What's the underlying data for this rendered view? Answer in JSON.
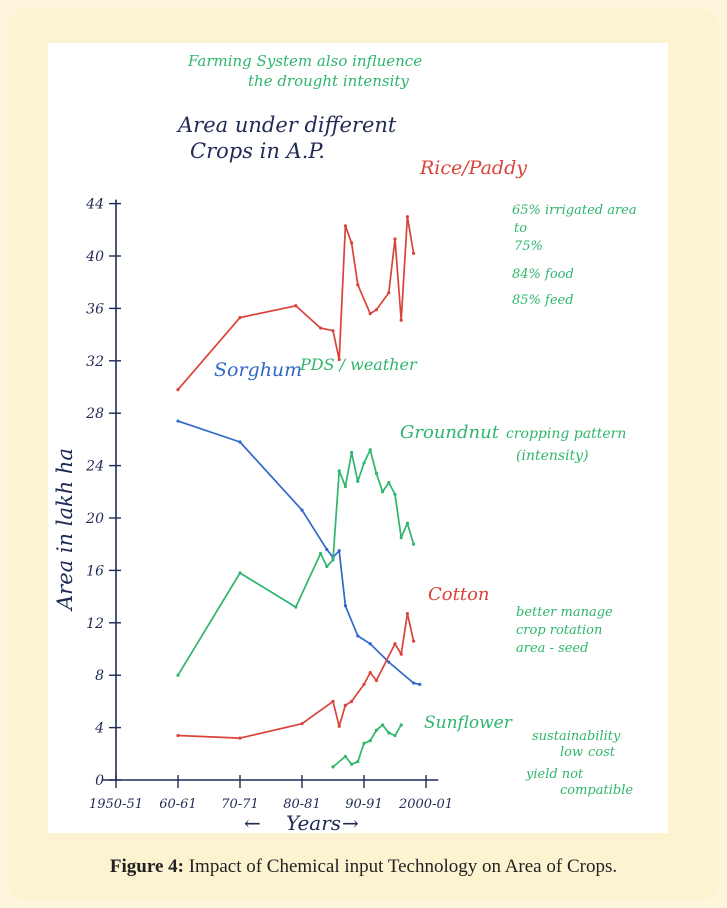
{
  "colors": {
    "rice": "#d9433a",
    "sorghum": "#2f68c9",
    "groundnut": "#2fb56d",
    "cotton": "#d9433a",
    "sunflower": "#2fb56d",
    "ink": "#1f2a55",
    "note": "#2fb56d"
  },
  "caption": {
    "label": "Figure 4:",
    "text": "Impact of Chemical input Technology on Area of Crops."
  },
  "notes": {
    "top_line1": "Farming System also influence",
    "top_line2": "the drought intensity",
    "pds": "PDS / weather",
    "irrigated_1": "65% irrigated area",
    "irrigated_2": "to",
    "irrigated_3": "75%",
    "food": "84% food",
    "feed": "85% feed",
    "cropping_1": "cropping pattern",
    "cropping_2": "(intensity)",
    "water_1": "better manage",
    "water_2": "crop rotation",
    "water_3": "area - seed",
    "sust_1": "sustainability",
    "sust_2": "low",
    "sust_3": "cost",
    "sust_4": "yield not",
    "sust_5": "compatible"
  },
  "chart_data": {
    "type": "line",
    "title": "Area under different Crops in A.P.",
    "xlabel": "Years",
    "ylabel": "Area in lakh ha",
    "x_tick_labels": [
      "1950-51",
      "60-61",
      "70-71",
      "80-81",
      "90-91",
      "2000-01"
    ],
    "x_tick_values": [
      1950,
      1960,
      1970,
      1980,
      1990,
      2000
    ],
    "y_ticks": [
      0,
      4,
      8,
      12,
      16,
      20,
      24,
      28,
      32,
      36,
      40,
      44
    ],
    "xlim": [
      1950,
      2002
    ],
    "ylim": [
      0,
      44
    ],
    "grid": false,
    "legend": "none",
    "series": [
      {
        "name": "Rice/Paddy",
        "color": "#d9433a",
        "points": [
          [
            1960,
            29.8
          ],
          [
            1970,
            35.3
          ],
          [
            1979,
            36.2
          ],
          [
            1983,
            34.5
          ],
          [
            1985,
            34.3
          ],
          [
            1986,
            32.1
          ],
          [
            1987,
            42.3
          ],
          [
            1988,
            41.0
          ],
          [
            1989,
            37.8
          ],
          [
            1991,
            35.6
          ],
          [
            1992,
            35.9
          ],
          [
            1994,
            37.2
          ],
          [
            1995,
            41.3
          ],
          [
            1996,
            35.1
          ],
          [
            1997,
            43.0
          ],
          [
            1998,
            40.2
          ]
        ]
      },
      {
        "name": "Sorghum",
        "color": "#2f68c9",
        "points": [
          [
            1960,
            27.4
          ],
          [
            1970,
            25.8
          ],
          [
            1980,
            20.6
          ],
          [
            1984,
            17.6
          ],
          [
            1985,
            17.0
          ],
          [
            1986,
            17.5
          ],
          [
            1987,
            13.3
          ],
          [
            1989,
            11.0
          ],
          [
            1991,
            10.4
          ],
          [
            1994,
            9.0
          ],
          [
            1998,
            7.4
          ],
          [
            1999,
            7.3
          ]
        ]
      },
      {
        "name": "Groundnut",
        "color": "#2fb56d",
        "points": [
          [
            1960,
            8.0
          ],
          [
            1970,
            15.8
          ],
          [
            1979,
            13.2
          ],
          [
            1983,
            17.3
          ],
          [
            1984,
            16.3
          ],
          [
            1985,
            16.8
          ],
          [
            1986,
            23.6
          ],
          [
            1987,
            22.4
          ],
          [
            1988,
            25.0
          ],
          [
            1989,
            22.8
          ],
          [
            1990,
            24.2
          ],
          [
            1991,
            25.2
          ],
          [
            1992,
            23.4
          ],
          [
            1993,
            22.0
          ],
          [
            1994,
            22.7
          ],
          [
            1995,
            21.8
          ],
          [
            1996,
            18.5
          ],
          [
            1997,
            19.6
          ],
          [
            1998,
            18.0
          ]
        ]
      },
      {
        "name": "Cotton",
        "color": "#d9433a",
        "points": [
          [
            1960,
            3.4
          ],
          [
            1970,
            3.2
          ],
          [
            1980,
            4.3
          ],
          [
            1985,
            6.0
          ],
          [
            1986,
            4.1
          ],
          [
            1987,
            5.7
          ],
          [
            1988,
            6.0
          ],
          [
            1990,
            7.3
          ],
          [
            1991,
            8.2
          ],
          [
            1992,
            7.6
          ],
          [
            1995,
            10.4
          ],
          [
            1996,
            9.6
          ],
          [
            1997,
            12.7
          ],
          [
            1998,
            10.6
          ]
        ]
      },
      {
        "name": "Sunflower",
        "color": "#2fb56d",
        "points": [
          [
            1985,
            1.0
          ],
          [
            1987,
            1.8
          ],
          [
            1988,
            1.2
          ],
          [
            1989,
            1.4
          ],
          [
            1990,
            2.8
          ],
          [
            1991,
            3.0
          ],
          [
            1992,
            3.8
          ],
          [
            1993,
            4.2
          ],
          [
            1994,
            3.6
          ],
          [
            1995,
            3.4
          ],
          [
            1996,
            4.2
          ]
        ]
      }
    ],
    "annotations": [
      "Rice/Paddy",
      "Sorghum",
      "Groundnut",
      "Cotton",
      "Sunflower"
    ]
  }
}
